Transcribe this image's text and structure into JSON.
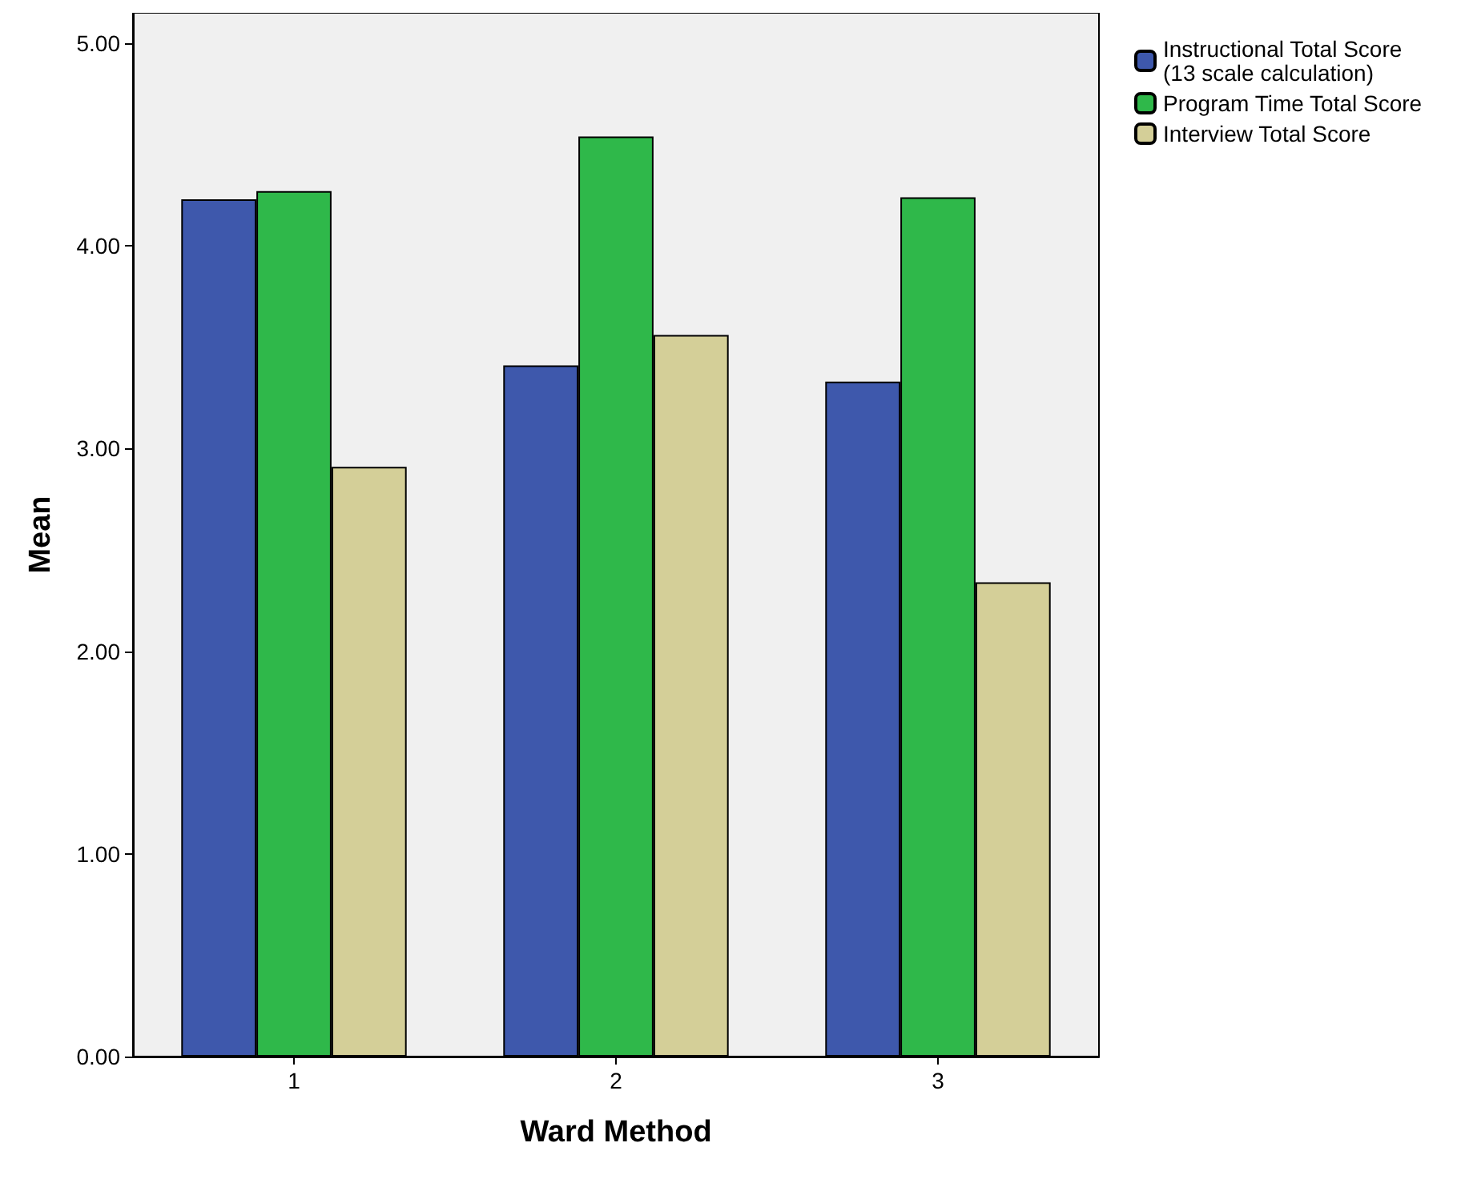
{
  "chart_data": {
    "type": "bar",
    "xlabel": "Ward Method",
    "ylabel": "Mean",
    "categories": [
      "1",
      "2",
      "3"
    ],
    "series": [
      {
        "name": "Instructional Total Score\n(13 scale calculation)",
        "color": "#3e58ac",
        "values": [
          4.23,
          3.41,
          3.33
        ]
      },
      {
        "name": "Program Time Total Score",
        "color": "#2fb84a",
        "values": [
          4.27,
          4.54,
          4.24
        ]
      },
      {
        "name": "Interview Total Score",
        "color": "#d4cf98",
        "values": [
          2.91,
          3.56,
          2.34
        ]
      }
    ],
    "ylim": [
      0,
      5.15
    ],
    "yticks": [
      {
        "value": 0,
        "label": "0.00"
      },
      {
        "value": 1,
        "label": "1.00"
      },
      {
        "value": 2,
        "label": "2.00"
      },
      {
        "value": 3,
        "label": "3.00"
      },
      {
        "value": 4,
        "label": "4.00"
      },
      {
        "value": 5,
        "label": "5.00"
      }
    ],
    "legend": "top right"
  }
}
